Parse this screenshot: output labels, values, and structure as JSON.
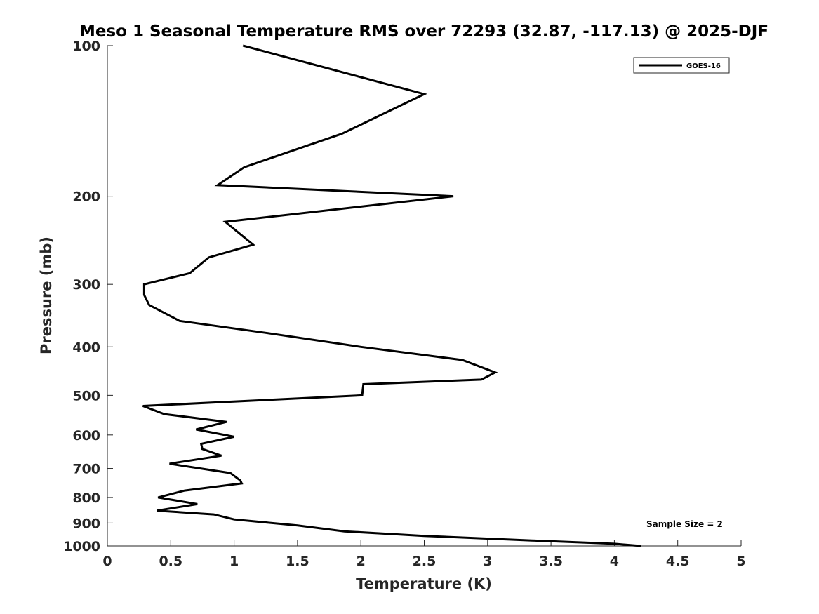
{
  "chart_data": {
    "type": "line",
    "title": "Meso 1 Seasonal Temperature RMS over 72293 (32.87, -117.13) @ 2025-DJF",
    "xlabel": "Temperature (K)",
    "ylabel": "Pressure (mb)",
    "xlim": [
      0,
      5
    ],
    "ylim": [
      1000,
      100
    ],
    "y_scale": "log",
    "y_reversed": true,
    "x_ticks": [
      0,
      0.5,
      1,
      1.5,
      2,
      2.5,
      3,
      3.5,
      4,
      4.5,
      5
    ],
    "x_tick_labels": [
      "0",
      "0.5",
      "1",
      "1.5",
      "2",
      "2.5",
      "3",
      "3.5",
      "4",
      "4.5",
      "5"
    ],
    "y_ticks": [
      100,
      200,
      300,
      400,
      500,
      600,
      700,
      800,
      900,
      1000
    ],
    "y_tick_labels": [
      "100",
      "200",
      "300",
      "400",
      "500",
      "600",
      "700",
      "800",
      "900",
      "1000"
    ],
    "grid": false,
    "legend": {
      "position": "top-right",
      "entries": [
        "GOES-16"
      ]
    },
    "annotations": [
      {
        "text": "Sample Size = 2",
        "position": "bottom-right"
      }
    ],
    "series": [
      {
        "name": "GOES-16",
        "color": "#000000",
        "x": [
          1.07,
          2.5,
          1.85,
          1.08,
          0.87,
          2.73,
          0.93,
          1.15,
          0.8,
          0.65,
          0.29,
          0.29,
          0.33,
          0.57,
          1.25,
          2.0,
          2.8,
          3.06,
          2.95,
          2.02,
          2.01,
          0.28,
          0.45,
          0.94,
          0.7,
          1.0,
          0.74,
          0.75,
          0.9,
          0.49,
          0.97,
          1.05,
          1.06,
          0.61,
          0.4,
          0.71,
          0.39,
          0.84,
          1.0,
          1.5,
          1.87,
          2.5,
          3.35,
          4.0,
          4.21
        ],
        "y": [
          100,
          125,
          150,
          175,
          190,
          200,
          225,
          250,
          265,
          285,
          300,
          315,
          330,
          355,
          375,
          400,
          425,
          450,
          465,
          475,
          500,
          525,
          545,
          565,
          585,
          605,
          625,
          640,
          660,
          685,
          715,
          740,
          750,
          775,
          800,
          825,
          850,
          865,
          885,
          910,
          935,
          955,
          975,
          990,
          1000
        ]
      }
    ]
  }
}
